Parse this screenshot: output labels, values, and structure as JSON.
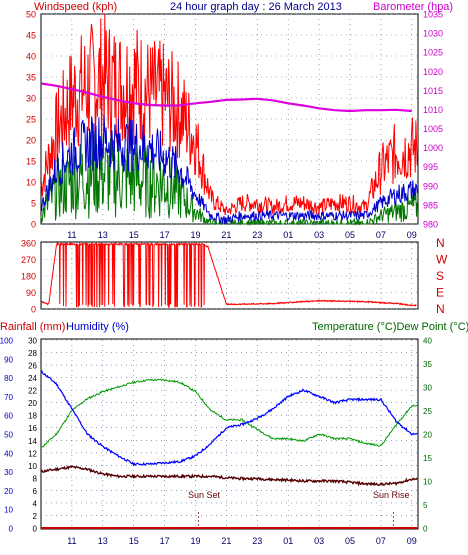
{
  "header": {
    "left_label": "Windspeed (kph)",
    "center_title": "24 hour graph day : 26 March 2013",
    "right_label": "Barometer (hpa)"
  },
  "colors": {
    "gust": "#ff0000",
    "average": "#0000cc",
    "low": "#007700",
    "barometer": "#dd00dd",
    "direction": "#ff0000",
    "temperature": "#009900",
    "dew_point": "#550000",
    "humidity": "#0000ff",
    "rainfall": "#cc0000",
    "axis_left_green": "#006600",
    "axis_left_blue": "#0000cc",
    "axis_red": "#cc0000",
    "axis_bar": "#cc00cc",
    "grid": "#4b6fa8"
  },
  "chart_data": [
    {
      "type": "line",
      "name": "wind_and_barometer",
      "title": "24 hour graph day : 26 March 2013",
      "x_ticks": [
        "11",
        "13",
        "15",
        "17",
        "19",
        "21",
        "23",
        "01",
        "03",
        "05",
        "07",
        "09"
      ],
      "x_label": "",
      "y_left_label": "Windspeed (kph)",
      "y_left_range": [
        0,
        50
      ],
      "y_left_ticks": [
        0,
        5,
        10,
        15,
        20,
        25,
        30,
        35,
        40,
        45,
        50
      ],
      "y_right_label": "Barometer (hpa)",
      "y_right_range": [
        980,
        1035
      ],
      "y_right_ticks": [
        980,
        985,
        990,
        995,
        1000,
        1005,
        1010,
        1015,
        1020,
        1025,
        1030,
        1035
      ],
      "grid": true,
      "hours": [
        9,
        10,
        11,
        12,
        13,
        14,
        15,
        16,
        17,
        18,
        19,
        20,
        21,
        22,
        23,
        24,
        25,
        26,
        27,
        28,
        29,
        30,
        31,
        32,
        33
      ],
      "series": [
        {
          "key": "gust",
          "values": [
            9,
            22,
            30,
            33,
            35,
            33,
            34,
            31,
            30,
            27,
            20,
            6,
            3,
            5,
            5,
            4,
            5,
            5,
            4,
            5,
            5,
            4,
            13,
            17,
            18
          ],
          "axis": "left"
        },
        {
          "key": "average",
          "values": [
            4,
            13,
            17,
            19,
            20,
            19,
            19,
            18,
            16,
            13,
            7,
            2,
            1,
            2,
            2,
            2,
            2,
            2,
            2,
            2,
            2,
            2,
            5,
            7,
            8
          ],
          "axis": "left"
        },
        {
          "key": "low",
          "values": [
            2,
            8,
            10,
            12,
            12,
            11,
            11,
            10,
            10,
            7,
            3,
            0,
            0,
            0,
            0,
            0,
            0,
            0,
            0,
            0,
            0,
            0,
            2,
            3,
            4
          ],
          "axis": "left"
        },
        {
          "key": "barometer",
          "values": [
            1016.8,
            1016.2,
            1015.3,
            1014.4,
            1013.3,
            1012.4,
            1011.6,
            1011.2,
            1011.0,
            1011.1,
            1011.6,
            1012.0,
            1012.5,
            1012.6,
            1012.8,
            1012.4,
            1011.6,
            1011.0,
            1010.3,
            1009.8,
            1009.6,
            1009.8,
            1009.8,
            1009.9,
            1009.6
          ],
          "axis": "right"
        }
      ]
    },
    {
      "type": "line",
      "name": "wind_direction",
      "y_ticks": [
        "360",
        "270",
        "180",
        "90",
        "0"
      ],
      "y_range": [
        0,
        360
      ],
      "y_right_ticks": [
        "N",
        "W",
        "S",
        "E",
        "N"
      ],
      "grid": true,
      "hours": [
        9,
        9.5,
        10,
        19.3,
        19.8,
        21,
        24,
        27,
        30,
        32,
        33
      ],
      "values": [
        40,
        25,
        350,
        350,
        340,
        25,
        30,
        45,
        40,
        30,
        20
      ],
      "notes": "Frequent wrap-around between ~0 and ~355 degrees from about 10:00 to 19:00"
    },
    {
      "type": "line",
      "name": "climate",
      "y_left_outer_label": "Rainfall (mm)",
      "y_left_outer_range": [
        0,
        100
      ],
      "y_left_outer_ticks": [
        0,
        10,
        20,
        30,
        40,
        50,
        60,
        70,
        80,
        90,
        100
      ],
      "y_left_inner_label": "Humidity (%)",
      "y_left_inner_range": [
        0,
        30
      ],
      "y_left_inner_ticks": [
        0,
        2,
        4,
        6,
        8,
        10,
        12,
        14,
        16,
        18,
        20,
        22,
        24,
        26,
        28,
        30
      ],
      "y_right_label": "Temperature (°C)Dew Point (°C)",
      "y_right_range": [
        0,
        40
      ],
      "y_right_ticks": [
        0,
        5,
        10,
        15,
        20,
        25,
        30,
        35,
        40
      ],
      "annotations": [
        "Sun Set",
        "Sun Rise"
      ],
      "grid": true,
      "hours": [
        9,
        10,
        11,
        12,
        13,
        14,
        15,
        16,
        17,
        18,
        19,
        20,
        21,
        22,
        23,
        24,
        25,
        26,
        27,
        28,
        29,
        30,
        31,
        32,
        33
      ],
      "series": [
        {
          "key": "temperature",
          "values": [
            17,
            20,
            25,
            27.5,
            29,
            30,
            31,
            31.5,
            31.5,
            31,
            29,
            25,
            23,
            23,
            21,
            19,
            19,
            18.5,
            20,
            19,
            19,
            18,
            17.5,
            22,
            26
          ],
          "axis": "right"
        },
        {
          "key": "dew_point",
          "values": [
            12,
            12.5,
            13,
            12.5,
            11.5,
            11,
            11,
            11,
            11,
            11,
            11,
            11,
            10.7,
            10.5,
            10.5,
            10.3,
            10.2,
            10,
            10,
            10,
            9.7,
            9.4,
            9.3,
            9.5,
            10.4
          ],
          "axis": "right"
        },
        {
          "key": "humidity",
          "values": [
            25,
            23,
            19,
            15,
            13,
            11.5,
            10.2,
            10.2,
            10.4,
            10.6,
            11.5,
            13.5,
            16,
            16.5,
            17.5,
            19,
            21,
            22,
            21,
            20,
            20.5,
            20.5,
            20.5,
            17,
            15
          ],
          "axis": "left_outer"
        },
        {
          "key": "rainfall",
          "values": [
            0,
            0,
            0,
            0,
            0,
            0,
            0,
            0,
            0,
            0,
            0,
            0,
            0,
            0,
            0,
            0,
            0,
            0,
            0,
            0,
            0,
            0,
            0,
            0,
            0
          ],
          "axis": "left_outer"
        }
      ]
    }
  ],
  "footer": {
    "climate_labels": {
      "rainfall": "Rainfall (mm)",
      "humidity": "Humidity (%)",
      "temperature": "Temperature (°C)Dew Point (°C)",
      "sun_set": "Sun Set",
      "sun_rise": "Sun Rise"
    }
  }
}
